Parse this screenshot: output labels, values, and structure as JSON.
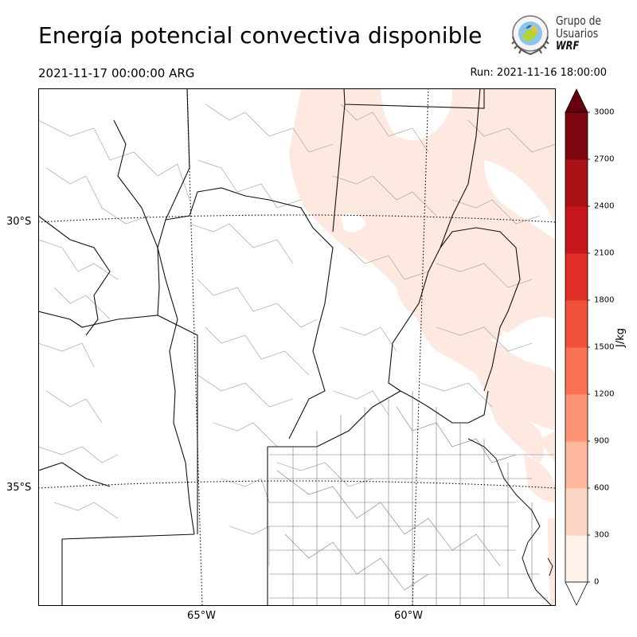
{
  "header": {
    "title": "Energía potencial convectiva disponible",
    "valid_time": "2021-11-17 00:00:00 ARG",
    "run_time": "Run: 2021-11-16 18:00:00"
  },
  "logo": {
    "line1": "Grupo de",
    "line2": "Usuarios",
    "line3": "WRF"
  },
  "map": {
    "lat_ticks": [
      "30°S",
      "35°S"
    ],
    "lon_ticks": [
      "65°W",
      "60°W"
    ],
    "land_color": "#ffffff",
    "border_color": "#000000",
    "field_low_color": "#fee9e1"
  },
  "colorbar": {
    "unit": "J/kg",
    "levels": [
      "0",
      "300",
      "600",
      "900",
      "1200",
      "1500",
      "1800",
      "2100",
      "2400",
      "2700",
      "3000"
    ],
    "colors": [
      "#fff0ea",
      "#fdd5c4",
      "#fcb79d",
      "#fc9475",
      "#fb7252",
      "#f1503a",
      "#e12f27",
      "#c7171c",
      "#a91117",
      "#7f0611"
    ],
    "over_color": "#67000d",
    "under_color": "#ffffff"
  }
}
